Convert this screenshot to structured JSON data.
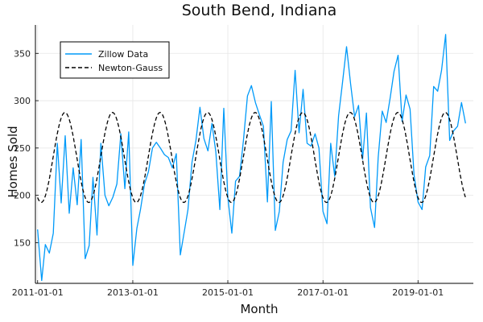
{
  "chart_data": {
    "type": "line",
    "title": "South Bend, Indiana",
    "xlabel": "Month",
    "ylabel": "Homes Sold",
    "x_tick_labels": [
      "2011-01-01",
      "2013-01-01",
      "2015-01-01",
      "2017-01-01",
      "2019-01-01"
    ],
    "y_ticks": [
      150,
      200,
      250,
      300,
      350
    ],
    "xlim": [
      "2010-12-15",
      "2020-03-01"
    ],
    "ylim": [
      107,
      380
    ],
    "grid": true,
    "legend_position": "top-left",
    "series": [
      {
        "name": "Zillow Data",
        "style": "solid",
        "color": "#009AF9",
        "x": [
          "2011-01-01",
          "2011-02-01",
          "2011-03-01",
          "2011-04-01",
          "2011-05-01",
          "2011-06-01",
          "2011-07-01",
          "2011-08-01",
          "2011-09-01",
          "2011-10-01",
          "2011-11-01",
          "2011-12-01",
          "2012-01-01",
          "2012-02-01",
          "2012-03-01",
          "2012-04-01",
          "2012-05-01",
          "2012-06-01",
          "2012-07-01",
          "2012-08-01",
          "2012-09-01",
          "2012-10-01",
          "2012-11-01",
          "2012-12-01",
          "2013-01-01",
          "2013-02-01",
          "2013-03-01",
          "2013-04-01",
          "2013-05-01",
          "2013-06-01",
          "2013-07-01",
          "2013-08-01",
          "2013-09-01",
          "2013-10-01",
          "2013-11-01",
          "2013-12-01",
          "2014-01-01",
          "2014-02-01",
          "2014-03-01",
          "2014-04-01",
          "2014-05-01",
          "2014-06-01",
          "2014-07-01",
          "2014-08-01",
          "2014-09-01",
          "2014-10-01",
          "2014-11-01",
          "2014-12-01",
          "2015-01-01",
          "2015-02-01",
          "2015-03-01",
          "2015-04-01",
          "2015-05-01",
          "2015-06-01",
          "2015-07-01",
          "2015-08-01",
          "2015-09-01",
          "2015-10-01",
          "2015-11-01",
          "2015-12-01",
          "2016-01-01",
          "2016-02-01",
          "2016-03-01",
          "2016-04-01",
          "2016-05-01",
          "2016-06-01",
          "2016-07-01",
          "2016-08-01",
          "2016-09-01",
          "2016-10-01",
          "2016-11-01",
          "2016-12-01",
          "2017-01-01",
          "2017-02-01",
          "2017-03-01",
          "2017-04-01",
          "2017-05-01",
          "2017-06-01",
          "2017-07-01",
          "2017-08-01",
          "2017-09-01",
          "2017-10-01",
          "2017-11-01",
          "2017-12-01",
          "2018-01-01",
          "2018-02-01",
          "2018-03-01",
          "2018-04-01",
          "2018-05-01",
          "2018-06-01",
          "2018-07-01",
          "2018-08-01",
          "2018-09-01",
          "2018-10-01",
          "2018-11-01",
          "2018-12-01",
          "2019-01-01",
          "2019-02-01",
          "2019-03-01",
          "2019-04-01",
          "2019-05-01",
          "2019-06-01",
          "2019-07-01",
          "2019-08-01",
          "2019-09-01",
          "2019-10-01",
          "2019-11-01",
          "2019-12-01",
          "2020-01-01"
        ],
        "y": [
          164,
          110,
          148,
          139,
          160,
          255,
          192,
          263,
          181,
          229,
          190,
          259,
          133,
          147,
          219,
          158,
          255,
          200,
          189,
          198,
          212,
          265,
          207,
          267,
          126,
          165,
          185,
          212,
          225,
          250,
          256,
          250,
          243,
          240,
          229,
          244,
          137,
          162,
          185,
          235,
          258,
          293,
          260,
          247,
          276,
          246,
          185,
          292,
          198,
          160,
          215,
          220,
          258,
          305,
          316,
          298,
          285,
          273,
          193,
          299,
          163,
          183,
          235,
          259,
          268,
          332,
          266,
          312,
          255,
          252,
          265,
          250,
          183,
          170,
          255,
          220,
          284,
          320,
          357,
          318,
          283,
          295,
          238,
          287,
          187,
          166,
          240,
          289,
          277,
          303,
          331,
          348,
          278,
          306,
          291,
          222,
          193,
          185,
          230,
          242,
          315,
          310,
          332,
          370,
          258,
          268,
          273,
          298,
          276
        ]
      },
      {
        "name": "Newton-Gauss",
        "style": "dashed",
        "color": "#000000",
        "model": {
          "mean": 240,
          "amplitude": 47.5,
          "period_months": 12,
          "peak_month_offset": 6.9
        },
        "x_start": "2011-01-01",
        "x_end": "2020-01-01"
      }
    ]
  }
}
